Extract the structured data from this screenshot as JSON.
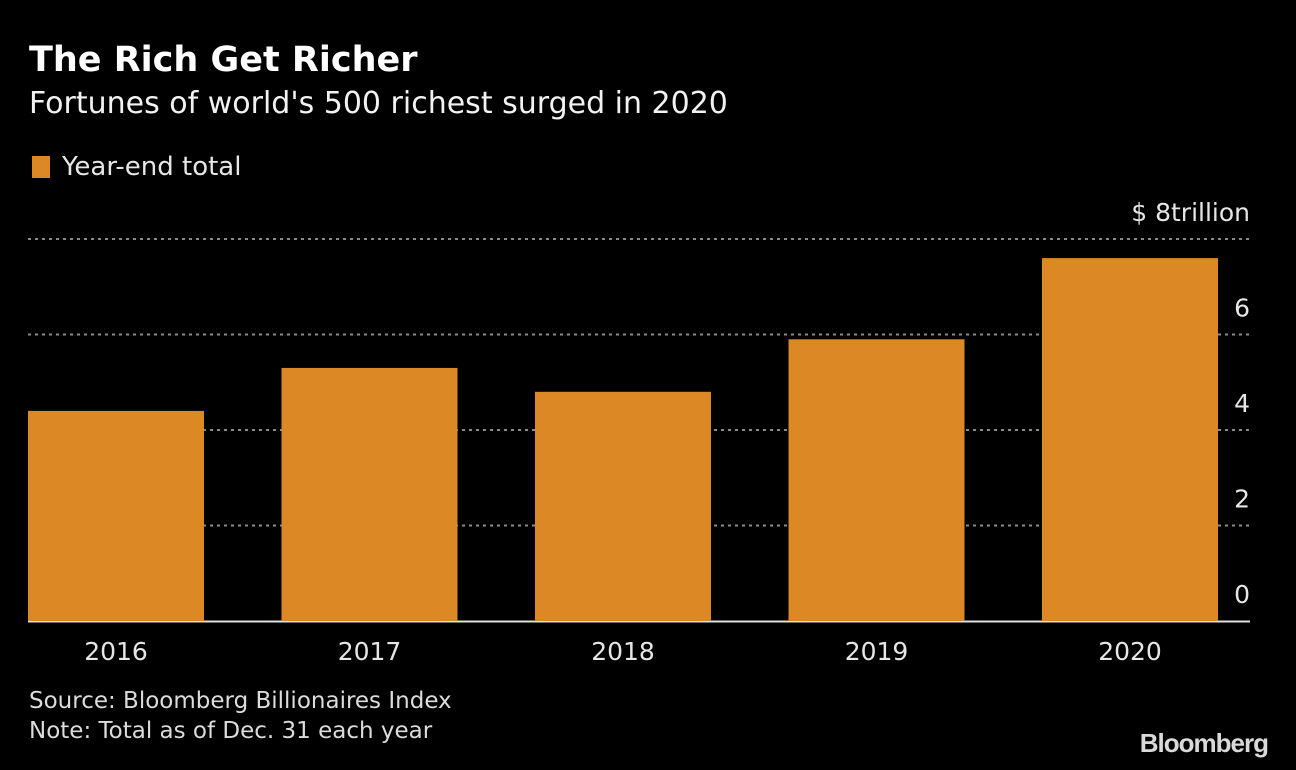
{
  "chart_data": {
    "type": "bar",
    "title": "The Rich Get Richer",
    "subtitle": "Fortunes of world's 500 richest surged in 2020",
    "legend": [
      {
        "name": "Year-end total",
        "color": "#db8825"
      }
    ],
    "legend_position": "top-left",
    "categories": [
      "2016",
      "2017",
      "2018",
      "2019",
      "2020"
    ],
    "series": [
      {
        "name": "Year-end total",
        "values": [
          4.4,
          5.3,
          4.8,
          5.9,
          7.6
        ]
      }
    ],
    "ylim": [
      0,
      8
    ],
    "yticks": [
      0,
      2,
      4,
      6,
      8
    ],
    "ytick_labels": [
      "0",
      "2",
      "4",
      "6",
      "$ 8trillion"
    ],
    "yaxis_side": "right",
    "grid": true,
    "xlabel": "",
    "ylabel": "$ trillion",
    "unit_label": "$ 8trillion"
  },
  "footer": {
    "source": "Source: Bloomberg Billionaires Index",
    "note": "Note: Total as of Dec. 31 each year",
    "logo": "Bloomberg"
  },
  "colors": {
    "bar": "#db8825",
    "background": "#000000",
    "grid": "#8a8a8a",
    "axis": "#e0e0e0"
  }
}
